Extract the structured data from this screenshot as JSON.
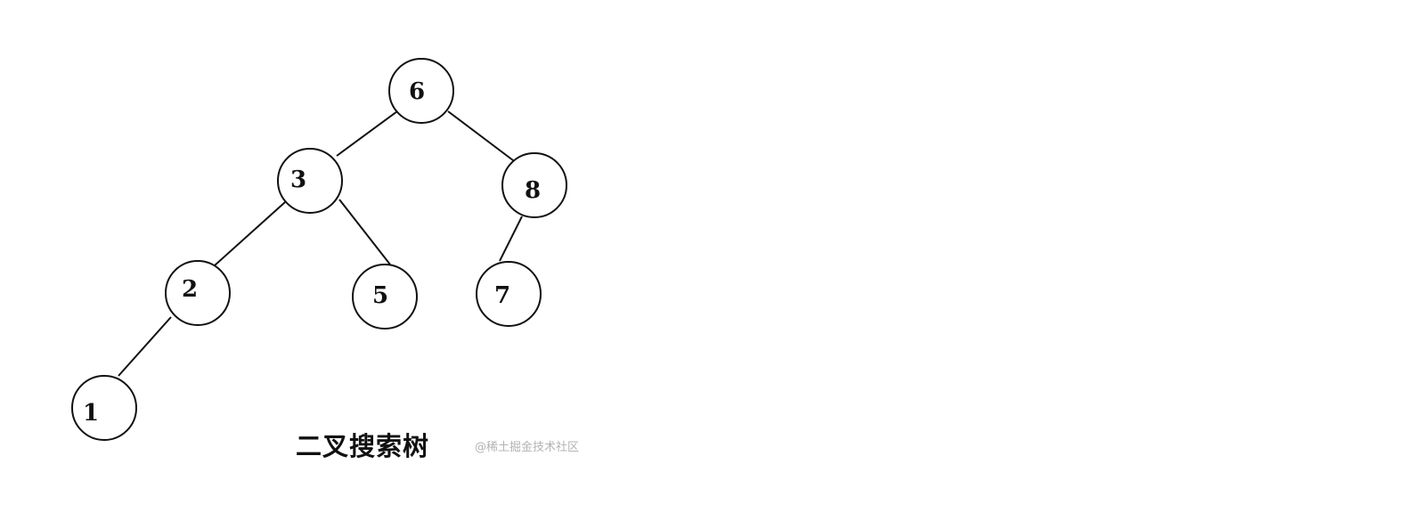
{
  "diagram": {
    "type": "binary-search-tree",
    "caption": "二叉搜索树",
    "watermark": "@稀土掘金技术社区",
    "nodes": [
      {
        "id": "n6",
        "label": "6"
      },
      {
        "id": "n3",
        "label": "3"
      },
      {
        "id": "n8",
        "label": "8"
      },
      {
        "id": "n2",
        "label": "2"
      },
      {
        "id": "n5",
        "label": "5"
      },
      {
        "id": "n7",
        "label": "7"
      },
      {
        "id": "n1",
        "label": "1"
      }
    ],
    "edges": [
      {
        "from": "n6",
        "to": "n3"
      },
      {
        "from": "n6",
        "to": "n8"
      },
      {
        "from": "n3",
        "to": "n2"
      },
      {
        "from": "n3",
        "to": "n5"
      },
      {
        "from": "n8",
        "to": "n7"
      },
      {
        "from": "n2",
        "to": "n1"
      }
    ]
  }
}
